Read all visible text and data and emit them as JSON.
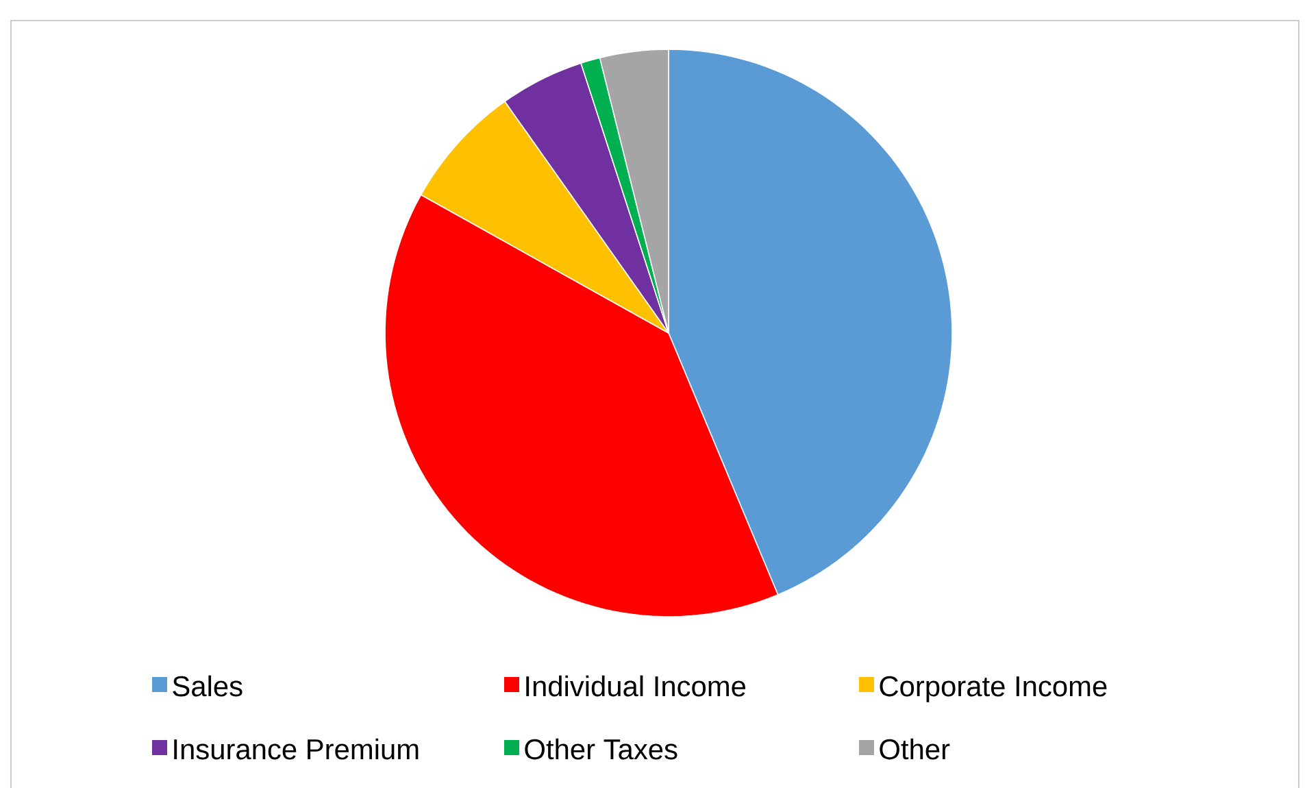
{
  "chart_data": {
    "type": "pie",
    "categories": [
      "Sales",
      "Individual Income",
      "Corporate Income",
      "Insurance Premium",
      "Other Taxes",
      "Other"
    ],
    "values": [
      43.7,
      39.4,
      7.1,
      4.8,
      1.1,
      3.9
    ],
    "colors": [
      "#5b9bd5",
      "#ff0000",
      "#ffc000",
      "#7030a0",
      "#00b050",
      "#a5a5a5"
    ],
    "legend": "bottom"
  }
}
